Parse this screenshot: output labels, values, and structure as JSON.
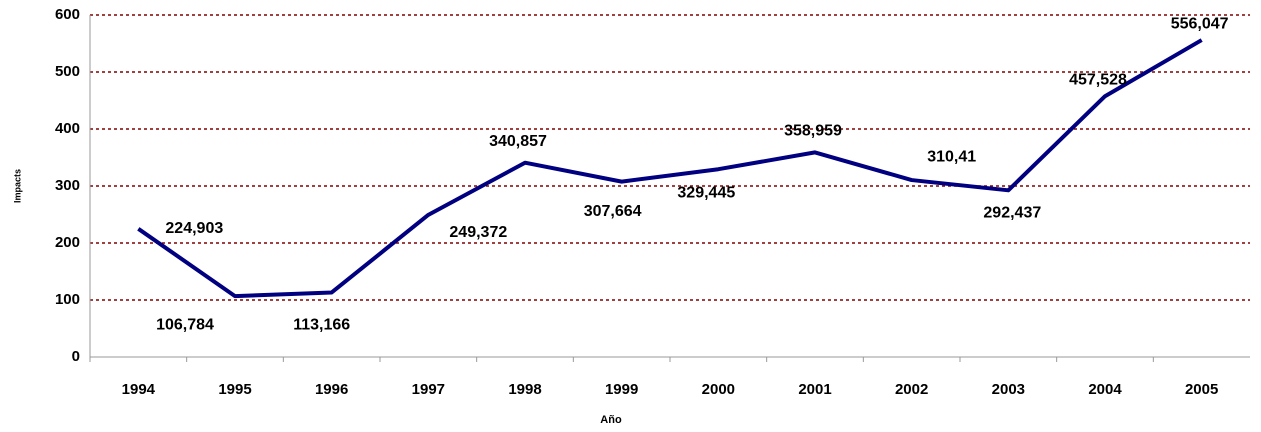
{
  "chart_data": {
    "type": "line",
    "x_label": "Año",
    "y_label": "Impacts",
    "categories": [
      "1994",
      "1995",
      "1996",
      "1997",
      "1998",
      "1999",
      "2000",
      "2001",
      "2002",
      "2003",
      "2004",
      "2005"
    ],
    "series": [
      {
        "name": "Impacts",
        "color": "#000080",
        "values": [
          224.903,
          106.784,
          113.166,
          249.372,
          340.857,
          307.664,
          329.445,
          358.959,
          310.41,
          292.437,
          457.528,
          556.047
        ],
        "value_labels": [
          "224,903",
          "106,784",
          "113,166",
          "249,372",
          "340,857",
          "307,664",
          "329,445",
          "358,959",
          "310,41",
          "292,437",
          "457,528",
          "556,047"
        ]
      }
    ],
    "ylim": [
      0,
      600
    ],
    "yticks": [
      0,
      100,
      200,
      300,
      400,
      500,
      600
    ],
    "grid": true,
    "grid_color": "#800000"
  }
}
